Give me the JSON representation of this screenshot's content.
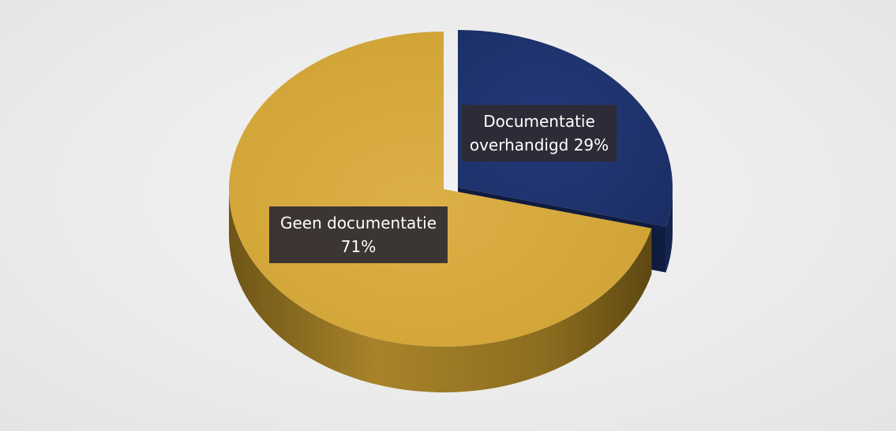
{
  "chart_data": {
    "type": "pie",
    "slices": [
      {
        "label": "Documentatie overhandigd",
        "value": 29,
        "percent_text": "29%",
        "label_lines": [
          "Documentatie",
          "overhandigd 29%"
        ],
        "color": "#1f3470",
        "side_color": "#14244f",
        "exploded": true
      },
      {
        "label": "Geen documentatie",
        "value": 71,
        "percent_text": "71%",
        "label_lines": [
          "Geen documentatie",
          "71%"
        ],
        "color": "#d4a83a",
        "side_color": "#8c6d1f",
        "exploded": false
      }
    ],
    "style": "3d",
    "legend": "none"
  }
}
